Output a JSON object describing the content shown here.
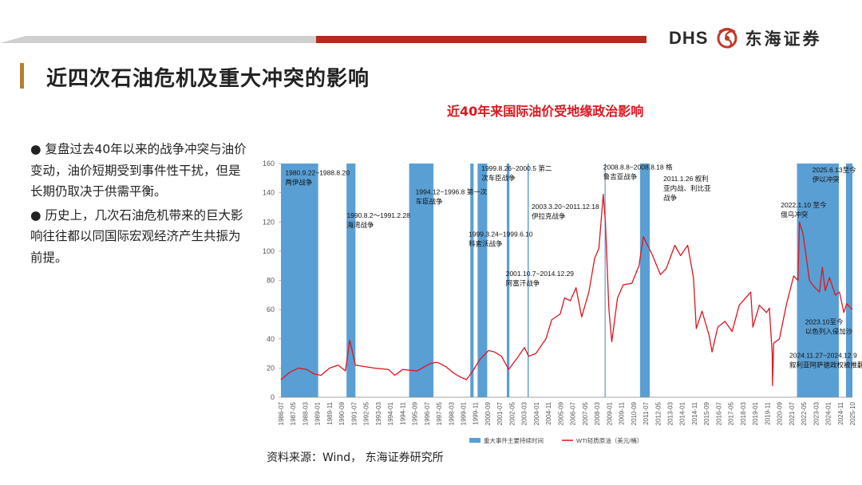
{
  "header": {
    "logo_mark": "DHS",
    "logo_name": "东海证券",
    "page_title": "近四次石油危机及重大冲突的影响"
  },
  "bullets": [
    "● 复盘过去40年以来的战争冲突与油价变动，油价短期受到事件性干扰，但是长期仍取决于供需平衡。",
    "● 历史上，几次石油危机带来的巨大影响往往都以同国际宏观经济产生共振为前提。"
  ],
  "source": "资料来源：Wind， 东海证券研究所",
  "colors": {
    "band": "#5a9fd4",
    "line": "#e0141e",
    "accent": "#b42a1c"
  },
  "chart_data": {
    "type": "line",
    "title": "近40年来国际油价受地缘政治影响",
    "ylim": [
      0,
      160
    ],
    "yticks": [
      0,
      20,
      40,
      60,
      80,
      100,
      120,
      140,
      160
    ],
    "xlim": [
      1986.0,
      2025.9
    ],
    "xtick_labels": [
      "1986-07",
      "1987-05",
      "1988-03",
      "1989-01",
      "1989-11",
      "1990-09",
      "1991-07",
      "1992-05",
      "1993-03",
      "1994-01",
      "1994-11",
      "1995-09",
      "1996-07",
      "1997-05",
      "1998-03",
      "1999-01",
      "1999-11",
      "2000-09",
      "2001-07",
      "2002-05",
      "2003-03",
      "2004-01",
      "2004-11",
      "2005-09",
      "2006-07",
      "2007-05",
      "2008-03",
      "2009-01",
      "2009-11",
      "2010-09",
      "2011-07",
      "2012-05",
      "2013-03",
      "2014-01",
      "2014-11",
      "2015-09",
      "2016-07",
      "2017-05",
      "2018-03",
      "2019-01",
      "2019-11",
      "2020-09",
      "2021-07",
      "2022-05",
      "2023-03",
      "2024-01",
      "2024-11",
      "2025-10"
    ],
    "legend": [
      "重大事件主要持续时间",
      "WTI轻质原油（美元/桶）"
    ],
    "bands": [
      {
        "start": 1986.0,
        "end": 1988.6
      },
      {
        "start": 1990.58,
        "end": 1991.2
      },
      {
        "start": 1994.95,
        "end": 1996.65
      },
      {
        "start": 1999.22,
        "end": 1999.45
      },
      {
        "start": 1999.73,
        "end": 2000.4
      },
      {
        "start": 2001.77,
        "end": 2001.95
      },
      {
        "start": 2003.22,
        "end": 2003.3
      },
      {
        "start": 2008.6,
        "end": 2008.65
      },
      {
        "start": 2011.07,
        "end": 2011.75
      },
      {
        "start": 2022.03,
        "end": 2024.95
      },
      {
        "start": 2025.45,
        "end": 2025.9
      }
    ],
    "annotations": [
      {
        "x": 1986.3,
        "y": 152,
        "lines": [
          "1980.9.22~1988.8.20",
          "两伊战争"
        ]
      },
      {
        "x": 1990.6,
        "y": 123,
        "lines": [
          "1990.8.2～1991.2.28",
          "海湾战争"
        ]
      },
      {
        "x": 1995.4,
        "y": 139,
        "lines": [
          "1994.12~1996.8 第一次",
          "车臣战争"
        ]
      },
      {
        "x": 1999.1,
        "y": 110,
        "lines": [
          "1999.3.24~1999.6.10",
          "科索沃战争"
        ]
      },
      {
        "x": 2000.0,
        "y": 155,
        "lines": [
          "1999.8.26~2000.5 第二",
          "次车臣战争"
        ]
      },
      {
        "x": 2001.7,
        "y": 83,
        "lines": [
          "2001.10.7~2014.12.29",
          "阿富汗战争"
        ]
      },
      {
        "x": 2003.5,
        "y": 129,
        "lines": [
          "2003.3.20~2011.12.18",
          "伊拉克战争"
        ]
      },
      {
        "x": 2008.5,
        "y": 156,
        "lines": [
          "2008.8.8~2008.8.18 格",
          "鲁吉亚战争"
        ]
      },
      {
        "x": 2012.7,
        "y": 148,
        "lines": [
          "2011.1.26 叙利",
          "亚内战、利比亚",
          "战争"
        ]
      },
      {
        "x": 2020.9,
        "y": 130,
        "lines": [
          "2022.1.10 至今",
          "俄乌冲突"
        ]
      },
      {
        "x": 2023.1,
        "y": 154,
        "lines": [
          "2025.6.13至今",
          "伊以冲突"
        ]
      },
      {
        "x": 2022.6,
        "y": 50,
        "lines": [
          "2023.10至今",
          "以色列入侵加沙"
        ]
      },
      {
        "x": 2021.5,
        "y": 27,
        "lines": [
          "2024.11.27~2024.12.9",
          "叙利亚阿萨德政权被推翻"
        ]
      }
    ],
    "series": [
      {
        "name": "WTI轻质原油（美元/桶）",
        "x": [
          1986.0,
          1986.6,
          1987.2,
          1987.8,
          1988.3,
          1988.8,
          1989.4,
          1990.0,
          1990.5,
          1990.8,
          1990.95,
          1991.2,
          1991.8,
          1992.5,
          1993.5,
          1993.95,
          1994.5,
          1995.5,
          1996.4,
          1996.9,
          1997.5,
          1998.0,
          1998.5,
          1998.95,
          1999.4,
          1999.9,
          2000.5,
          2000.9,
          2001.4,
          2001.9,
          2002.5,
          2003.0,
          2003.3,
          2003.8,
          2004.5,
          2004.9,
          2005.5,
          2005.8,
          2006.2,
          2006.6,
          2007.0,
          2007.5,
          2007.9,
          2008.2,
          2008.5,
          2008.65,
          2008.9,
          2009.1,
          2009.5,
          2009.9,
          2010.5,
          2011.0,
          2011.3,
          2011.9,
          2012.5,
          2012.9,
          2013.5,
          2013.9,
          2014.4,
          2014.8,
          2015.0,
          2015.4,
          2015.9,
          2016.1,
          2016.5,
          2017.0,
          2017.5,
          2018.0,
          2018.8,
          2018.95,
          2019.4,
          2019.9,
          2020.1,
          2020.3,
          2020.32,
          2020.4,
          2020.8,
          2021.3,
          2021.8,
          2022.1,
          2022.2,
          2022.45,
          2022.9,
          2023.2,
          2023.6,
          2023.8,
          2024.0,
          2024.3,
          2024.7,
          2025.0,
          2025.3,
          2025.5,
          2025.9
        ],
        "y": [
          12,
          17,
          20,
          19,
          16,
          15,
          20,
          22,
          18,
          39,
          33,
          22,
          21,
          20,
          19,
          15,
          19,
          18,
          23,
          24,
          21,
          17,
          14,
          12,
          18,
          26,
          32,
          31,
          28,
          19,
          27,
          34,
          28,
          30,
          40,
          53,
          57,
          68,
          66,
          75,
          55,
          72,
          95,
          102,
          139,
          120,
          60,
          38,
          68,
          77,
          78,
          90,
          110,
          98,
          84,
          88,
          104,
          97,
          104,
          82,
          47,
          59,
          42,
          31,
          48,
          52,
          45,
          63,
          72,
          48,
          63,
          58,
          61,
          30,
          8,
          37,
          40,
          64,
          83,
          80,
          120,
          112,
          80,
          76,
          72,
          89,
          73,
          82,
          70,
          72,
          58,
          64,
          60
        ]
      }
    ]
  }
}
